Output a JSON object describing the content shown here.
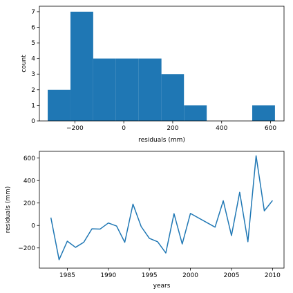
{
  "colors": {
    "series": "#1f77b4",
    "axes": "#000000",
    "background": "#ffffff"
  },
  "chart_data": [
    {
      "type": "bar",
      "subtype": "histogram",
      "xlabel": "residuals (mm)",
      "ylabel": "count",
      "xlim": [
        -345,
        655
      ],
      "ylim": [
        0,
        7.35
      ],
      "x_ticks": [
        -200,
        0,
        200,
        400,
        600
      ],
      "x_tick_labels": [
        "−200",
        "0",
        "200",
        "400",
        "600"
      ],
      "y_ticks": [
        0,
        1,
        2,
        3,
        4,
        5,
        6,
        7
      ],
      "y_tick_labels": [
        "0",
        "1",
        "2",
        "3",
        "4",
        "5",
        "6",
        "7"
      ],
      "bin_edges": [
        -311,
        -218,
        -125,
        -32,
        61,
        154,
        246,
        339,
        432,
        525,
        618
      ],
      "values": [
        2,
        7,
        4,
        4,
        4,
        3,
        1,
        0,
        0,
        1
      ],
      "grid": false
    },
    {
      "type": "line",
      "xlabel": "years",
      "ylabel": "residuals (mm)",
      "xlim": [
        1981.6,
        2011.4
      ],
      "ylim": [
        -380,
        660
      ],
      "x_ticks": [
        1985,
        1990,
        1995,
        2000,
        2005,
        2010
      ],
      "x_tick_labels": [
        "1985",
        "1990",
        "1995",
        "2000",
        "2005",
        "2010"
      ],
      "y_ticks": [
        -200,
        0,
        200,
        400,
        600
      ],
      "y_tick_labels": [
        "−200",
        "0",
        "200",
        "400",
        "600"
      ],
      "x": [
        1983,
        1984,
        1985,
        1986,
        1987,
        1988,
        1989,
        1990,
        1991,
        1992,
        1993,
        1994,
        1995,
        1996,
        1997,
        1998,
        1999,
        2000,
        2003,
        2004,
        2005,
        2006,
        2007,
        2008,
        2009,
        2010
      ],
      "y": [
        70,
        -305,
        -140,
        -195,
        -150,
        -30,
        -32,
        22,
        -5,
        -150,
        190,
        -10,
        -115,
        -145,
        -245,
        105,
        -165,
        107,
        -15,
        220,
        -90,
        295,
        -145,
        620,
        130,
        222
      ],
      "grid": false
    }
  ]
}
